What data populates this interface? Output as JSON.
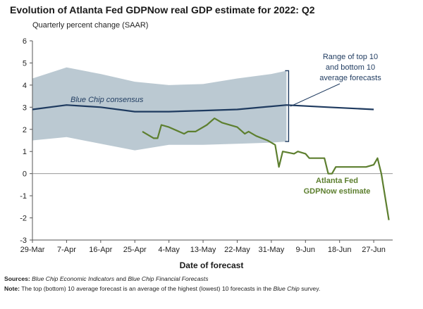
{
  "chart_data": {
    "type": "line",
    "title": "Evolution of Atlanta Fed GDPNow real GDP estimate for 2022: Q2",
    "subtitle": "Quarterly percent change (SAAR)",
    "xlabel": "Date of forecast",
    "ylabel": "",
    "ylim": [
      -3,
      6
    ],
    "yticks": [
      "6",
      "5",
      "4",
      "3",
      "2",
      "1",
      "0",
      "-1",
      "-2",
      "-3"
    ],
    "xticks": [
      "29-Mar",
      "7-Apr",
      "16-Apr",
      "25-Apr",
      "4-May",
      "13-May",
      "22-May",
      "31-May",
      "9-Jun",
      "18-Jun",
      "27-Jun"
    ],
    "xlim_days": [
      0,
      95
    ],
    "tick_day_step": 9,
    "grid": false,
    "series": [
      {
        "name": "Range of top 10 and bottom 10 average forecasts",
        "kind": "band",
        "color": "#b7c6d0",
        "upper": [
          [
            0,
            4.3
          ],
          [
            9,
            4.8
          ],
          [
            18,
            4.5
          ],
          [
            27,
            4.15
          ],
          [
            36,
            4.0
          ],
          [
            45,
            4.05
          ],
          [
            54,
            4.3
          ],
          [
            63,
            4.5
          ],
          [
            67,
            4.65
          ]
        ],
        "lower": [
          [
            0,
            1.5
          ],
          [
            9,
            1.65
          ],
          [
            18,
            1.35
          ],
          [
            27,
            1.05
          ],
          [
            36,
            1.3
          ],
          [
            45,
            1.3
          ],
          [
            54,
            1.35
          ],
          [
            63,
            1.4
          ],
          [
            67,
            1.45
          ]
        ]
      },
      {
        "name": "Blue Chip consensus",
        "kind": "line",
        "color": "#1e3a5f",
        "points": [
          [
            0,
            2.9
          ],
          [
            9,
            3.1
          ],
          [
            18,
            3.0
          ],
          [
            27,
            2.8
          ],
          [
            36,
            2.8
          ],
          [
            45,
            2.85
          ],
          [
            54,
            2.9
          ],
          [
            67,
            3.1
          ],
          [
            78,
            3.0
          ],
          [
            90,
            2.9
          ]
        ]
      },
      {
        "name": "Atlanta Fed GDPNow estimate",
        "kind": "line",
        "color": "#5d7f2f",
        "points": [
          [
            29,
            1.9
          ],
          [
            32,
            1.6
          ],
          [
            33,
            1.6
          ],
          [
            34,
            2.2
          ],
          [
            36,
            2.1
          ],
          [
            40,
            1.8
          ],
          [
            41,
            1.9
          ],
          [
            43,
            1.9
          ],
          [
            46,
            2.2
          ],
          [
            48,
            2.5
          ],
          [
            50,
            2.3
          ],
          [
            54,
            2.1
          ],
          [
            56,
            1.8
          ],
          [
            57,
            1.9
          ],
          [
            59,
            1.7
          ],
          [
            62,
            1.5
          ],
          [
            64,
            1.3
          ],
          [
            65,
            0.3
          ],
          [
            66,
            1.0
          ],
          [
            69,
            0.9
          ],
          [
            70,
            1.0
          ],
          [
            72,
            0.9
          ],
          [
            73,
            0.7
          ],
          [
            77,
            0.7
          ],
          [
            78,
            0.0
          ],
          [
            79,
            0.0
          ],
          [
            80,
            0.3
          ],
          [
            83,
            0.3
          ],
          [
            86,
            0.3
          ],
          [
            88,
            0.3
          ],
          [
            90,
            0.4
          ],
          [
            91,
            0.7
          ],
          [
            92,
            0.0
          ],
          [
            94,
            -2.1
          ]
        ]
      }
    ],
    "annotations": {
      "band_line1": "Range of top 10",
      "band_line2": "and bottom 10",
      "band_line3": "average forecasts",
      "consensus": "Blue Chip consensus",
      "gdpnow_line1": "Atlanta Fed",
      "gdpnow_line2": "GDPNow estimate"
    }
  },
  "footer": {
    "sources_label": "Sources:",
    "sources_title1": "Blue Chip Economic Indicators",
    "sources_and": "and",
    "sources_title2": "Blue Chip Financial Forecasts",
    "note_label": "Note:",
    "note_text": "The top (bottom) 10 average forecast is an average of the highest (lowest) 10 forecasts in the",
    "note_title": "Blue Chip",
    "note_end": "survey."
  }
}
